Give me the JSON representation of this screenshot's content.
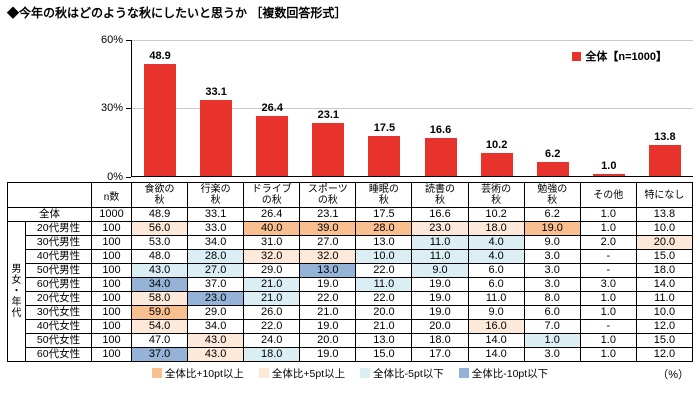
{
  "title": "◆今年の秋はどのような秋にしたいと思うか ［複数回答形式］",
  "chart_data": {
    "type": "bar",
    "title": "今年の秋はどのような秋にしたいと思うか",
    "categories": [
      "食欲の秋",
      "行楽の秋",
      "ドライブの秋",
      "スポーツの秋",
      "睡眠の秋",
      "読書の秋",
      "芸術の秋",
      "勉強の秋",
      "その他",
      "特になし"
    ],
    "values": [
      48.9,
      33.1,
      26.4,
      23.1,
      17.5,
      16.6,
      10.2,
      6.2,
      1.0,
      13.8
    ],
    "xlabel": "",
    "ylabel": "",
    "ylim": [
      0,
      60
    ],
    "yticks": [
      0,
      30,
      60
    ],
    "ytick_labels": [
      "0%",
      "30%",
      "60%"
    ],
    "grid": true,
    "legend_position": "top-right",
    "legend": [
      {
        "name": "全体【n=1000】",
        "color": "#e8332c"
      }
    ],
    "bar_color": "#e8332c"
  },
  "table": {
    "n_header": "n数",
    "group_label": "男女・年代",
    "col_headers": [
      "食欲の\n秋",
      "行楽の\n秋",
      "ドライブ\nの秋",
      "スポーツ\nの秋",
      "睡眠の\n秋",
      "読書の\n秋",
      "芸術の\n秋",
      "勉強の\n秋",
      "その他",
      "特になし"
    ],
    "rows": [
      {
        "label": "全体",
        "n": "1000",
        "values": [
          "48.9",
          "33.1",
          "26.4",
          "23.1",
          "17.5",
          "16.6",
          "10.2",
          "6.2",
          "1.0",
          "13.8"
        ]
      },
      {
        "label": "20代男性",
        "n": "100",
        "values": [
          "56.0",
          "33.0",
          "40.0",
          "39.0",
          "28.0",
          "23.0",
          "18.0",
          "19.0",
          "1.0",
          "10.0"
        ]
      },
      {
        "label": "30代男性",
        "n": "100",
        "values": [
          "53.0",
          "34.0",
          "31.0",
          "27.0",
          "13.0",
          "11.0",
          "4.0",
          "9.0",
          "2.0",
          "20.0"
        ]
      },
      {
        "label": "40代男性",
        "n": "100",
        "values": [
          "48.0",
          "28.0",
          "32.0",
          "32.0",
          "10.0",
          "11.0",
          "4.0",
          "3.0",
          "-",
          "15.0"
        ]
      },
      {
        "label": "50代男性",
        "n": "100",
        "values": [
          "43.0",
          "27.0",
          "29.0",
          "13.0",
          "22.0",
          "9.0",
          "6.0",
          "3.0",
          "-",
          "18.0"
        ]
      },
      {
        "label": "60代男性",
        "n": "100",
        "values": [
          "34.0",
          "37.0",
          "21.0",
          "19.0",
          "11.0",
          "19.0",
          "6.0",
          "3.0",
          "3.0",
          "14.0"
        ]
      },
      {
        "label": "20代女性",
        "n": "100",
        "values": [
          "58.0",
          "23.0",
          "21.0",
          "22.0",
          "22.0",
          "19.0",
          "11.0",
          "8.0",
          "1.0",
          "11.0"
        ]
      },
      {
        "label": "30代女性",
        "n": "100",
        "values": [
          "59.0",
          "29.0",
          "26.0",
          "21.0",
          "20.0",
          "19.0",
          "9.0",
          "6.0",
          "1.0",
          "10.0"
        ]
      },
      {
        "label": "40代女性",
        "n": "100",
        "values": [
          "54.0",
          "34.0",
          "22.0",
          "19.0",
          "21.0",
          "20.0",
          "16.0",
          "7.0",
          "-",
          "12.0"
        ]
      },
      {
        "label": "50代女性",
        "n": "100",
        "values": [
          "47.0",
          "43.0",
          "24.0",
          "20.0",
          "13.0",
          "18.0",
          "14.0",
          "1.0",
          "1.0",
          "15.0"
        ]
      },
      {
        "label": "60代女性",
        "n": "100",
        "values": [
          "37.0",
          "43.0",
          "18.0",
          "19.0",
          "15.0",
          "17.0",
          "14.0",
          "3.0",
          "1.0",
          "12.0"
        ]
      }
    ],
    "highlight_rules": [
      {
        "key": "p10",
        "min_diff": 10,
        "color": "#fabf8f",
        "label": "全体比+10pt以上"
      },
      {
        "key": "p5",
        "min_diff": 5,
        "color": "#fde9d9",
        "label": "全体比+5pt以上"
      },
      {
        "key": "m5",
        "max_diff": -5,
        "color": "#daeef3",
        "label": "全体比-5pt以下"
      },
      {
        "key": "m10",
        "max_diff": -10,
        "color": "#95b3d7",
        "label": "全体比-10pt以下"
      }
    ]
  },
  "footer": {
    "percent_label": "（%）"
  }
}
